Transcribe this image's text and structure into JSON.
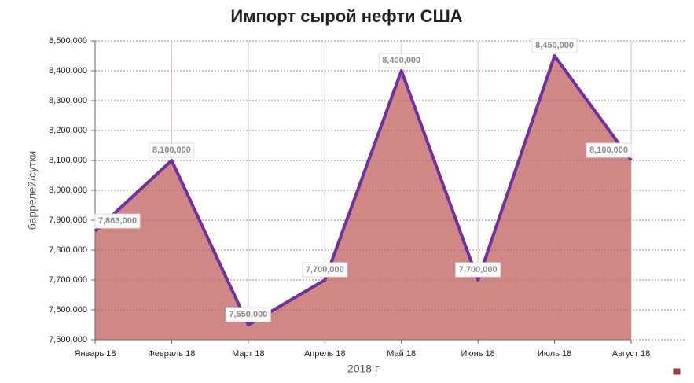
{
  "chart_data": {
    "type": "area",
    "title": "Импорт сырой нефти США",
    "x_label": "2018 г",
    "y_label": "баррелей/сутки",
    "categories": [
      "Январь 18",
      "Февраль 18",
      "Март 18",
      "Апрель 18",
      "Май 18",
      "Июнь 18",
      "Июль 18",
      "Август 18"
    ],
    "values": [
      7863000,
      8100000,
      7550000,
      7700000,
      8400000,
      7700000,
      8450000,
      8100000
    ],
    "value_labels": [
      "7,863,000",
      "8,100,000",
      "7,550,000",
      "7,700,000",
      "8,400,000",
      "7,700,000",
      "8,450,000",
      "8,100,000"
    ],
    "line_color": "#7030a0",
    "fill_color": "#c0605e",
    "ylim": [
      7500000,
      8500000
    ],
    "yticks": [
      {
        "value": 7500000,
        "label": "7,500,000"
      },
      {
        "value": 7600000,
        "label": "7,600,000"
      },
      {
        "value": 7700000,
        "label": "7,700,000"
      },
      {
        "value": 7800000,
        "label": "7,800,000"
      },
      {
        "value": 7900000,
        "label": "7,900,000"
      },
      {
        "value": 8000000,
        "label": "8,000,000"
      },
      {
        "value": 8100000,
        "label": "8,100,000"
      },
      {
        "value": 8200000,
        "label": "8,200,000"
      },
      {
        "value": 8300000,
        "label": "8,300,000"
      },
      {
        "value": 8400000,
        "label": "8,400,000"
      },
      {
        "value": 8500000,
        "label": "8,500,000"
      }
    ],
    "grid": true
  }
}
